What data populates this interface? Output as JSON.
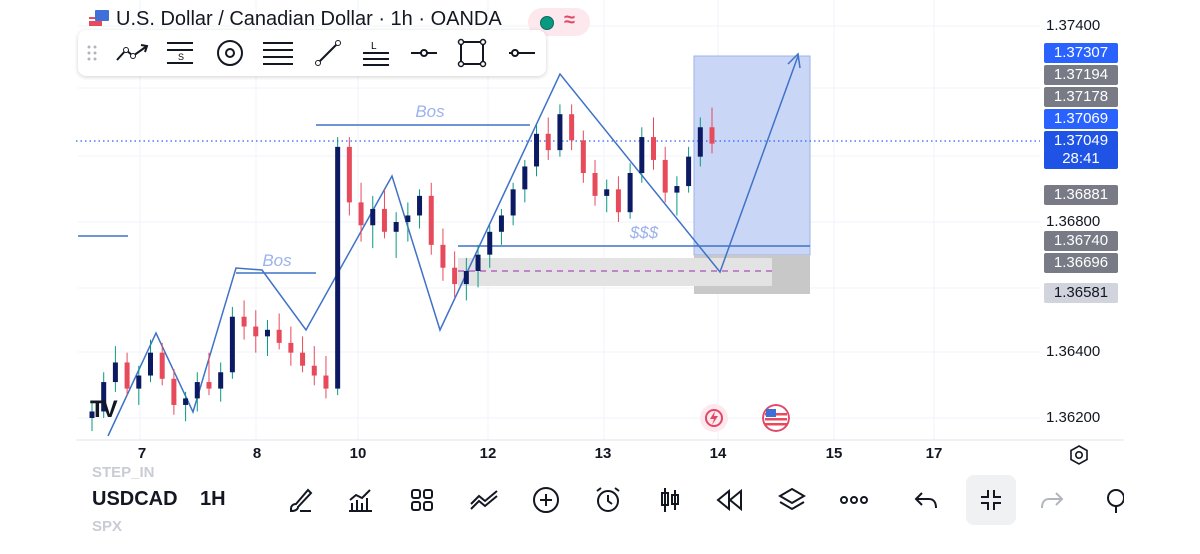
{
  "header": {
    "title": "U.S. Dollar / Canadian Dollar · 1h · OANDA",
    "status_icon": "market-open-dot",
    "wave_icon": "≈"
  },
  "drawing_toolbar": {
    "tools": [
      "drag-handle-icon",
      "trend-line-icon",
      "fib-retracement-icon",
      "circle-icon",
      "gann-icon",
      "ray-icon",
      "text-label-icon",
      "horizontal-ray-icon",
      "rectangle-icon",
      "horizontal-line-icon"
    ]
  },
  "chart_data": {
    "type": "candlestick",
    "symbol": "USDCAD",
    "interval": "1H",
    "y_axis": {
      "ticks": [
        "1.37400",
        "1.36800",
        "1.36400",
        "1.36200"
      ],
      "price_labels": [
        {
          "text": "1.37307",
          "color": "#2962ff"
        },
        {
          "text": "1.37194",
          "color": "#787b86"
        },
        {
          "text": "1.37178",
          "color": "#787b86"
        },
        {
          "text": "1.37069",
          "color": "#2962ff"
        },
        {
          "text": "1.37049",
          "color": "#1e53e5"
        },
        {
          "text": "28:41",
          "color": "#1e53e5"
        },
        {
          "text": "1.36881",
          "color": "#787b86"
        },
        {
          "text": "1.36740",
          "color": "#787b86"
        },
        {
          "text": "1.36696",
          "color": "#787b86"
        },
        {
          "text": "1.36581",
          "color": "#d1d4dc"
        }
      ]
    },
    "x_axis": {
      "ticks": [
        "7",
        "8",
        "10",
        "12",
        "13",
        "14",
        "15",
        "17"
      ]
    },
    "annotations": [
      {
        "text": "Bos"
      },
      {
        "text": "Bos"
      },
      {
        "text": "$$$"
      }
    ],
    "candles": [
      [
        1.362,
        1.3625,
        1.3616,
        1.3622
      ],
      [
        1.3622,
        1.3634,
        1.362,
        1.3631
      ],
      [
        1.3631,
        1.3642,
        1.3628,
        1.3637
      ],
      [
        1.3637,
        1.364,
        1.3627,
        1.3629
      ],
      [
        1.3629,
        1.3636,
        1.3624,
        1.3633
      ],
      [
        1.3633,
        1.3644,
        1.3631,
        1.364
      ],
      [
        1.364,
        1.3643,
        1.363,
        1.3632
      ],
      [
        1.3632,
        1.3635,
        1.3621,
        1.3624
      ],
      [
        1.3624,
        1.3628,
        1.3619,
        1.3626
      ],
      [
        1.3626,
        1.3634,
        1.3622,
        1.3631
      ],
      [
        1.3631,
        1.364,
        1.3627,
        1.3629
      ],
      [
        1.3629,
        1.3637,
        1.3625,
        1.3634
      ],
      [
        1.3634,
        1.3654,
        1.3632,
        1.3651
      ],
      [
        1.3651,
        1.3656,
        1.3644,
        1.3648
      ],
      [
        1.3648,
        1.3653,
        1.364,
        1.3645
      ],
      [
        1.3645,
        1.365,
        1.3639,
        1.3647
      ],
      [
        1.3647,
        1.3652,
        1.3641,
        1.3643
      ],
      [
        1.3643,
        1.3648,
        1.3636,
        1.364
      ],
      [
        1.364,
        1.3645,
        1.3634,
        1.3636
      ],
      [
        1.3636,
        1.3642,
        1.363,
        1.3633
      ],
      [
        1.3633,
        1.3639,
        1.3626,
        1.3629
      ],
      [
        1.3629,
        1.3706,
        1.3627,
        1.3703
      ],
      [
        1.3703,
        1.3706,
        1.3682,
        1.3686
      ],
      [
        1.3686,
        1.3692,
        1.3674,
        1.3679
      ],
      [
        1.3679,
        1.3688,
        1.3672,
        1.3684
      ],
      [
        1.3684,
        1.369,
        1.3675,
        1.3677
      ],
      [
        1.3677,
        1.3683,
        1.3669,
        1.368
      ],
      [
        1.368,
        1.3686,
        1.3674,
        1.3682
      ],
      [
        1.3682,
        1.369,
        1.3678,
        1.3688
      ],
      [
        1.3688,
        1.3692,
        1.367,
        1.3673
      ],
      [
        1.3673,
        1.3678,
        1.3662,
        1.3666
      ],
      [
        1.3666,
        1.3671,
        1.3657,
        1.3661
      ],
      [
        1.3661,
        1.3669,
        1.3656,
        1.3665
      ],
      [
        1.3665,
        1.3673,
        1.366,
        1.367
      ],
      [
        1.367,
        1.3679,
        1.3666,
        1.3677
      ],
      [
        1.3677,
        1.3684,
        1.3673,
        1.3682
      ],
      [
        1.3682,
        1.3692,
        1.3679,
        1.369
      ],
      [
        1.369,
        1.3699,
        1.3686,
        1.3697
      ],
      [
        1.3697,
        1.371,
        1.3694,
        1.3707
      ],
      [
        1.3707,
        1.3712,
        1.3699,
        1.3702
      ],
      [
        1.3702,
        1.3716,
        1.37,
        1.3713
      ],
      [
        1.3713,
        1.3716,
        1.3702,
        1.3705
      ],
      [
        1.3705,
        1.3708,
        1.3692,
        1.3695
      ],
      [
        1.3695,
        1.3699,
        1.3685,
        1.3688
      ],
      [
        1.3688,
        1.3693,
        1.3683,
        1.369
      ],
      [
        1.369,
        1.3694,
        1.368,
        1.3683
      ],
      [
        1.3683,
        1.3698,
        1.3681,
        1.3695
      ],
      [
        1.3695,
        1.3709,
        1.3692,
        1.3706
      ],
      [
        1.3706,
        1.3712,
        1.3696,
        1.3699
      ],
      [
        1.3699,
        1.3703,
        1.3686,
        1.3689
      ],
      [
        1.3689,
        1.3694,
        1.3682,
        1.3691
      ],
      [
        1.3691,
        1.3703,
        1.3689,
        1.37
      ],
      [
        1.37,
        1.3712,
        1.3697,
        1.3709
      ],
      [
        1.3709,
        1.3715,
        1.3701,
        1.3704
      ]
    ]
  },
  "side_markers": {
    "left_logo": "TV",
    "events": [
      "lightning-event-icon",
      "us-flag-event-icon"
    ]
  },
  "settings_icon": "gear-icon",
  "bottom_bar": {
    "symbol_ghost_top": "STEP_IN",
    "symbol": "USDCAD",
    "interval": "1H",
    "symbol_ghost_bottom": "SPX",
    "buttons": [
      "brush-icon",
      "indicators-icon",
      "layout-icon",
      "templates-icon",
      "add-icon",
      "alarm-icon",
      "candles-icon",
      "replay-icon",
      "layers-icon",
      "more-icon",
      "undo-icon",
      "collapse-icon",
      "redo-icon",
      "search-icon"
    ]
  }
}
